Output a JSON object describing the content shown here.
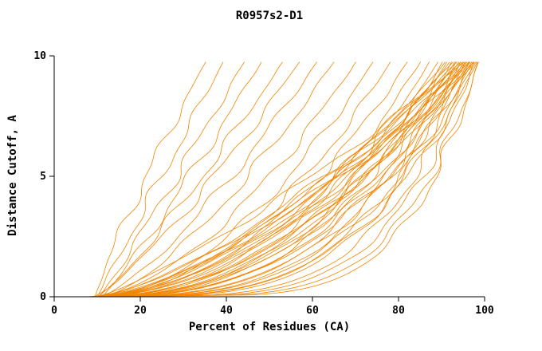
{
  "chart_data": {
    "type": "line",
    "title": "R0957s2-D1",
    "xlabel": "Percent of Residues (CA)",
    "ylabel": "Distance Cutoff, A",
    "xlim": [
      0,
      100
    ],
    "ylim": [
      0,
      10
    ],
    "x_ticks": [
      0,
      20,
      40,
      60,
      80,
      100
    ],
    "y_ticks": [
      0,
      5,
      10
    ],
    "grid": false,
    "legend": "none",
    "line_color": "#f28500",
    "axis_color": "#000000",
    "curves_note": "each curve approximated as [x_at_y0, x_at_y10, shape_exponent_k], x(y)=x0+(x10-x0)*(y/10)^k",
    "curves": [
      [
        9.5,
        36,
        1.15
      ],
      [
        10,
        40,
        1.0
      ],
      [
        10.5,
        45,
        0.95
      ],
      [
        11,
        49,
        0.9
      ],
      [
        10,
        54,
        0.85
      ],
      [
        9,
        58,
        0.8
      ],
      [
        10.5,
        62,
        0.75
      ],
      [
        11,
        66,
        0.7
      ],
      [
        9,
        71,
        0.6
      ],
      [
        10,
        75,
        0.55
      ],
      [
        8.5,
        79,
        0.5
      ],
      [
        10,
        83,
        0.5
      ],
      [
        9.5,
        86,
        0.45
      ],
      [
        8,
        88,
        0.42
      ],
      [
        8,
        90,
        0.4
      ],
      [
        8.5,
        91,
        0.38
      ],
      [
        9,
        92,
        0.36
      ],
      [
        9.5,
        92,
        0.55
      ],
      [
        10,
        93,
        0.33
      ],
      [
        7.5,
        93,
        0.5
      ],
      [
        8,
        94,
        0.3
      ],
      [
        8.5,
        94,
        0.6
      ],
      [
        9,
        94,
        0.42
      ],
      [
        9.5,
        95,
        0.28
      ],
      [
        10,
        95,
        0.45
      ],
      [
        10.5,
        95,
        0.65
      ],
      [
        8,
        96,
        0.26
      ],
      [
        8.5,
        96,
        0.38
      ],
      [
        9,
        96,
        0.52
      ],
      [
        9.5,
        96,
        0.7
      ],
      [
        10,
        97,
        0.24
      ],
      [
        8,
        97,
        0.34
      ],
      [
        8.5,
        97,
        0.48
      ],
      [
        9,
        97,
        0.6
      ],
      [
        9.5,
        98,
        0.22
      ],
      [
        10,
        98,
        0.32
      ],
      [
        10.5,
        98,
        0.44
      ],
      [
        8,
        98,
        0.56
      ],
      [
        8.5,
        98,
        0.68
      ],
      [
        9,
        99,
        0.2
      ],
      [
        9.5,
        99,
        0.3
      ],
      [
        10,
        99,
        0.4
      ],
      [
        10.5,
        99,
        0.52
      ],
      [
        8.5,
        99,
        0.64
      ],
      [
        9,
        99,
        0.18
      ],
      [
        9.5,
        97,
        0.8
      ]
    ]
  }
}
